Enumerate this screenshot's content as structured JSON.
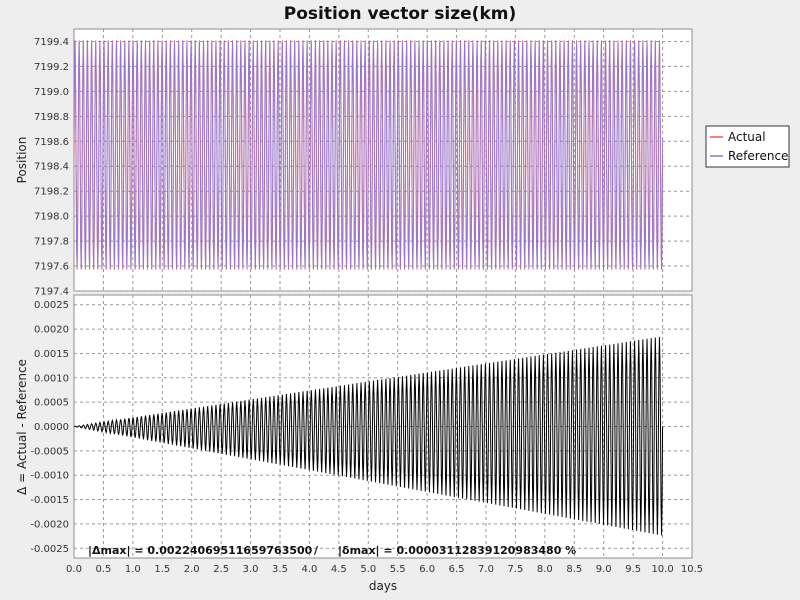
{
  "chart_data": [
    {
      "type": "line",
      "title": "Position vector size(km)",
      "ylabel": "Position",
      "xlabel": "",
      "xlim": [
        0,
        10.5
      ],
      "ylim": [
        7197.4,
        7199.5
      ],
      "yticks": [
        "7197.4",
        "7197.6",
        "7197.8",
        "7198.0",
        "7198.2",
        "7198.4",
        "7198.6",
        "7198.8",
        "7199.0",
        "7199.2",
        "7199.4"
      ],
      "grid": true,
      "legend_placement": "right",
      "series": [
        {
          "name": "Actual",
          "color": "#ee5555",
          "x_range": [
            0,
            10.0
          ],
          "min": 7197.57,
          "max": 7199.41,
          "cycles_approx": 142
        },
        {
          "name": "Reference",
          "color": "#8877dd",
          "x_range": [
            0,
            10.0
          ],
          "min": 7197.57,
          "max": 7199.41,
          "cycles_approx": 142
        }
      ]
    },
    {
      "type": "line",
      "title": "",
      "ylabel": "Δ = Actual - Reference",
      "xlabel": "days",
      "xlim": [
        0,
        10.5
      ],
      "ylim": [
        -0.0027,
        0.0027
      ],
      "xticks": [
        "0.0",
        "0.5",
        "1.0",
        "1.5",
        "2.0",
        "2.5",
        "3.0",
        "3.5",
        "4.0",
        "4.5",
        "5.0",
        "5.5",
        "6.0",
        "6.5",
        "7.0",
        "7.5",
        "8.0",
        "8.5",
        "9.0",
        "9.5",
        "10.0",
        "10.5"
      ],
      "yticks": [
        "-0.0025",
        "-0.0020",
        "-0.0015",
        "-0.0010",
        "-0.0005",
        "0.0000",
        "0.0005",
        "0.0010",
        "0.0015",
        "0.0020",
        "0.0025"
      ],
      "grid": true,
      "series": [
        {
          "color": "#000000",
          "x_range": [
            0,
            10.0
          ],
          "upper_envelope_end": 0.00185,
          "lower_envelope_end": -0.00224,
          "cycles_approx": 142
        }
      ],
      "annotation": {
        "delta_max": "|Δmax| = 0.0022406951165976350​0",
        "separator": "/",
        "delta_rel_max": "|δmax| = 0.00003112839120983480 %"
      }
    }
  ]
}
